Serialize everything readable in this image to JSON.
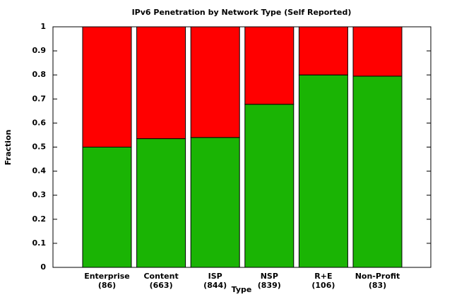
{
  "chart_data": {
    "type": "stacked_bar",
    "title": "IPv6 Penetration by Network Type (Self Reported)",
    "x_label": "Type",
    "y_label": "Fraction",
    "categories": [
      "Enterprise\n(86)",
      "Content\n(663)",
      "ISP\n(844)",
      "NSP\n(839)",
      "R+E\n(106)",
      "Non-Profit\n(83)"
    ],
    "series": [
      {
        "color": "#1ab404",
        "values": [
          0.5,
          0.535,
          0.54,
          0.678,
          0.8,
          0.795
        ]
      },
      {
        "color": "#ff0000",
        "values": [
          0.5,
          0.465,
          0.46,
          0.322,
          0.2,
          0.205
        ]
      }
    ],
    "ylim": [
      0,
      1
    ],
    "yticks": [
      0,
      0.1,
      0.2,
      0.3,
      0.4,
      0.5,
      0.6,
      0.7,
      0.8,
      0.9,
      1
    ]
  }
}
